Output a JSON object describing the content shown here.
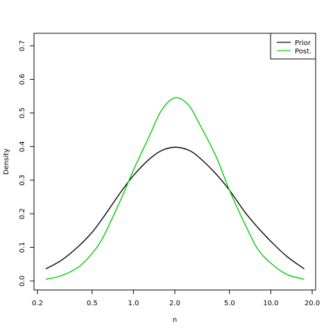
{
  "chart_data": {
    "type": "line",
    "title": "",
    "xlabel": "n",
    "ylabel": "Density",
    "x_scale": "log",
    "xlim": [
      0.2,
      20.0
    ],
    "ylim": [
      -0.03,
      0.735
    ],
    "x_ticks": [
      0.2,
      0.5,
      1.0,
      2.0,
      5.0,
      10.0,
      20.0
    ],
    "x_tick_labels": [
      "0.2",
      "0.5",
      "1.0",
      "2.0",
      "5.0",
      "10.0",
      "20.0"
    ],
    "y_ticks": [
      0.0,
      0.1,
      0.2,
      0.3,
      0.4,
      0.5,
      0.6,
      0.7
    ],
    "y_tick_labels": [
      "0.0",
      "0.1",
      "0.2",
      "0.3",
      "0.4",
      "0.5",
      "0.6",
      "0.7"
    ],
    "grid": false,
    "legend_position": "top-right",
    "series": [
      {
        "name": "Prior",
        "color": "#000000",
        "x": [
          0.23,
          0.3,
          0.4,
          0.5,
          0.6,
          0.8,
          1.0,
          1.3,
          1.6,
          2.0,
          2.5,
          3.0,
          4.0,
          5.0,
          6.5,
          8.0,
          10.0,
          13.0,
          17.5
        ],
        "y": [
          0.036,
          0.062,
          0.104,
          0.145,
          0.188,
          0.262,
          0.314,
          0.362,
          0.388,
          0.398,
          0.39,
          0.368,
          0.318,
          0.27,
          0.204,
          0.16,
          0.118,
          0.074,
          0.036
        ]
      },
      {
        "name": "Post.",
        "color": "#00cc00",
        "x": [
          0.23,
          0.3,
          0.4,
          0.5,
          0.6,
          0.8,
          1.0,
          1.3,
          1.6,
          2.0,
          2.5,
          3.0,
          4.0,
          5.0,
          6.5,
          8.0,
          10.0,
          13.0,
          17.5
        ],
        "y": [
          0.005,
          0.016,
          0.042,
          0.082,
          0.13,
          0.238,
          0.33,
          0.43,
          0.508,
          0.545,
          0.525,
          0.47,
          0.37,
          0.27,
          0.168,
          0.096,
          0.053,
          0.02,
          0.005
        ]
      }
    ]
  }
}
